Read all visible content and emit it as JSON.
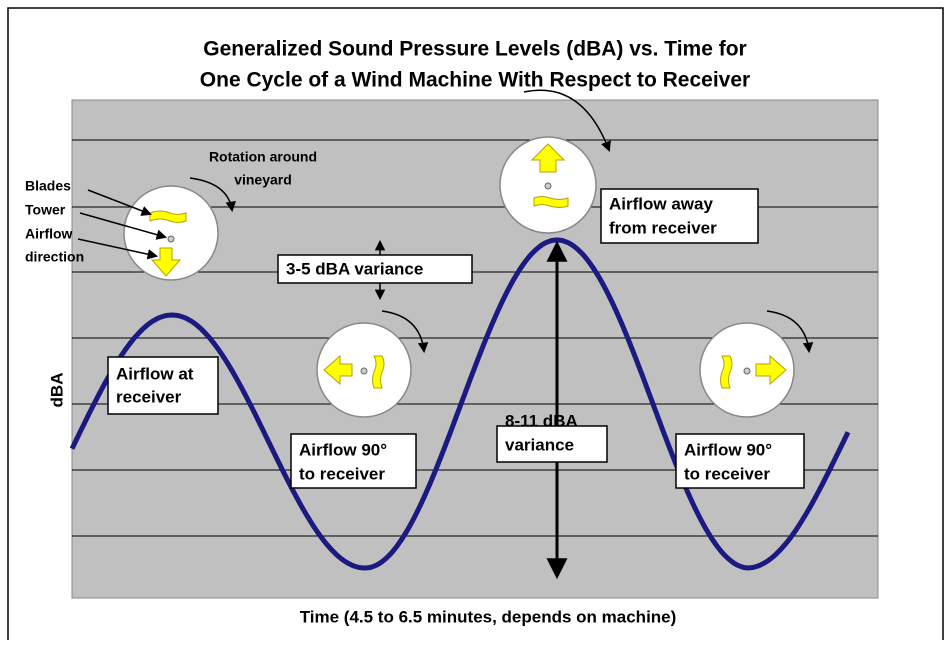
{
  "title": [
    "Generalized Sound Pressure Levels (dBA) vs. Time for",
    "One Cycle of a Wind Machine With Respect to Receiver"
  ],
  "y_axis_label": "dBA",
  "x_axis_label": "Time (4.5 to 6.5 minutes, depends on machine)",
  "legend_labels": {
    "rotation": [
      "Rotation around",
      "vineyard"
    ],
    "blades": "Blades",
    "tower": "Tower",
    "airflow": [
      "Airflow",
      "direction"
    ]
  },
  "annotations": {
    "airflow_at_receiver": [
      "Airflow at",
      "receiver"
    ],
    "small_variance": "3-5 dBA variance",
    "airflow_away": [
      "Airflow away",
      "from receiver"
    ],
    "large_variance": [
      "8-11 dBA",
      "variance"
    ],
    "airflow_90_left": [
      "Airflow 90°",
      "to receiver"
    ],
    "airflow_90_right": [
      "Airflow 90°",
      "to receiver"
    ]
  }
}
